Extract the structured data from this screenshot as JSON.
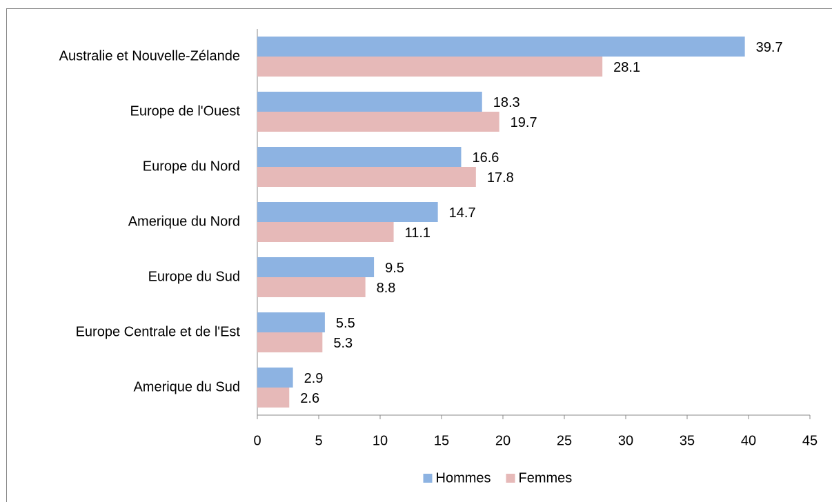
{
  "chart_data": {
    "type": "bar",
    "orientation": "horizontal",
    "categories": [
      "Australie et Nouvelle-Zélande",
      "Europe de l'Ouest",
      "Europe du Nord",
      "Amerique du Nord",
      "Europe du Sud",
      "Europe Centrale et de l'Est",
      "Amerique du Sud"
    ],
    "series": [
      {
        "name": "Hommes",
        "color": "#8db3e2",
        "values": [
          39.7,
          18.3,
          16.6,
          14.7,
          9.5,
          5.5,
          2.9
        ]
      },
      {
        "name": "Femmes",
        "color": "#e6b9b8",
        "values": [
          28.1,
          19.7,
          17.8,
          11.1,
          8.8,
          5.3,
          2.6
        ]
      }
    ],
    "xlim": [
      0,
      45
    ],
    "xticks": [
      0,
      5,
      10,
      15,
      20,
      25,
      30,
      35,
      40,
      45
    ],
    "grid": false,
    "legend": "bottom"
  }
}
